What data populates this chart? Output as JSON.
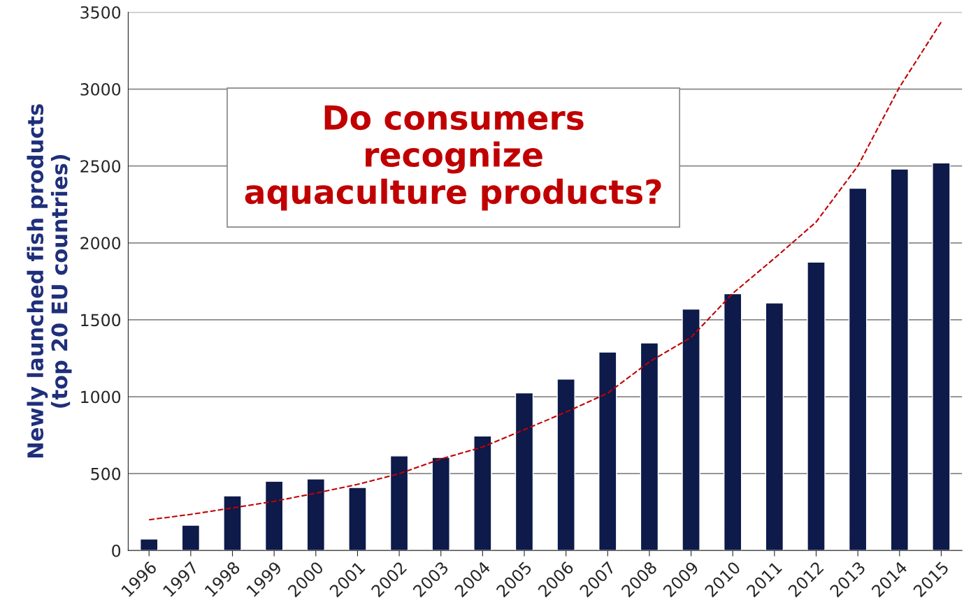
{
  "chart_data": {
    "type": "bar",
    "ylabel": "Newly launched fish products\n(top 20 EU countries)",
    "categories": [
      "1996",
      "1997",
      "1998",
      "1999",
      "2000",
      "2001",
      "2002",
      "2003",
      "2004",
      "2005",
      "2006",
      "2007",
      "2008",
      "2009",
      "2010",
      "2011",
      "2012",
      "2013",
      "2014",
      "2015"
    ],
    "series": [
      {
        "color": "#0d1a4a",
        "values": [
          75,
          165,
          355,
          450,
          465,
          410,
          615,
          605,
          745,
          1025,
          1115,
          1290,
          1350,
          1570,
          1670,
          1610,
          1875,
          2355,
          2480,
          2520
        ]
      },
      {
        "type": "line",
        "color": "#c00000",
        "line_style": "dashed",
        "values": [
          200,
          235,
          277,
          320,
          373,
          430,
          500,
          595,
          673,
          786,
          900,
          1023,
          1227,
          1386,
          1672,
          1900,
          2136,
          2500,
          3013,
          3436
        ]
      }
    ],
    "ylim": [
      0,
      3500
    ],
    "yticks": [
      0,
      500,
      1000,
      1500,
      2000,
      2500,
      3000,
      3500
    ],
    "grid": "y",
    "annotations": [
      "Do consumers\nrecognize\naquaculture products?"
    ]
  }
}
